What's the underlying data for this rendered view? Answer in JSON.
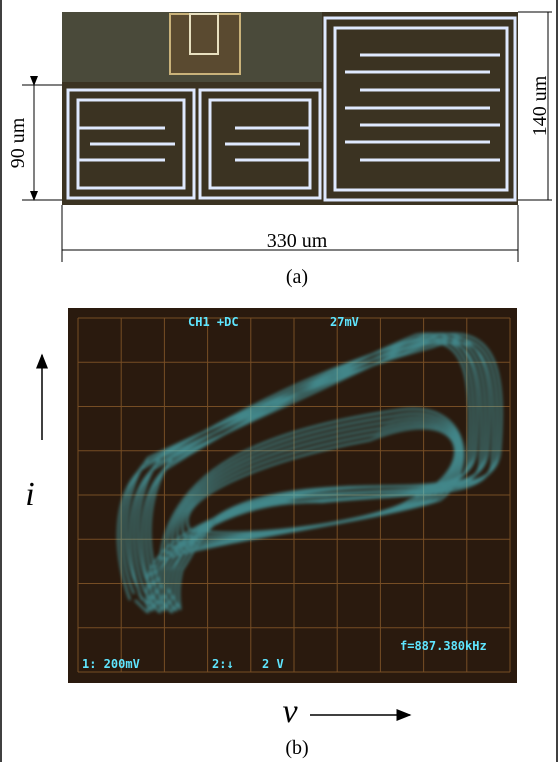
{
  "panel_a": {
    "height_small": "90 um",
    "height_large": "140 um",
    "width": "330 um",
    "caption": "(a)"
  },
  "panel_b": {
    "scope": {
      "channel": "CH1 +DC",
      "offset": "27mV",
      "ch1_scale": "1: 200mV",
      "ch2_mode": "2:↓",
      "ch2_scale": "2 V",
      "frequency": "f=887.380kHz"
    },
    "y_label": "i",
    "x_label": "v",
    "caption": "(b)"
  }
}
